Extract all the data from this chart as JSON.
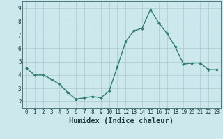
{
  "x": [
    0,
    1,
    2,
    3,
    4,
    5,
    6,
    7,
    8,
    9,
    10,
    11,
    12,
    13,
    14,
    15,
    16,
    17,
    18,
    19,
    20,
    21,
    22,
    23
  ],
  "y": [
    4.5,
    4.0,
    4.0,
    3.7,
    3.3,
    2.7,
    2.2,
    2.3,
    2.4,
    2.3,
    2.8,
    4.6,
    6.5,
    7.3,
    7.5,
    8.9,
    7.9,
    7.1,
    6.1,
    4.8,
    4.9,
    4.9,
    4.4,
    4.4
  ],
  "line_color": "#2e7d6e",
  "marker_color": "#2e7d6e",
  "bg_color": "#cce8ed",
  "grid_color": "#b0ced4",
  "xlabel": "Humidex (Indice chaleur)",
  "ylim": [
    1.5,
    9.5
  ],
  "xlim": [
    -0.5,
    23.5
  ],
  "yticks": [
    2,
    3,
    4,
    5,
    6,
    7,
    8,
    9
  ],
  "xticks": [
    0,
    1,
    2,
    3,
    4,
    5,
    6,
    7,
    8,
    9,
    10,
    11,
    12,
    13,
    14,
    15,
    16,
    17,
    18,
    19,
    20,
    21,
    22,
    23
  ],
  "tick_fontsize": 5.5,
  "xlabel_fontsize": 7.5,
  "line_width": 1.0,
  "marker_size": 2.5
}
